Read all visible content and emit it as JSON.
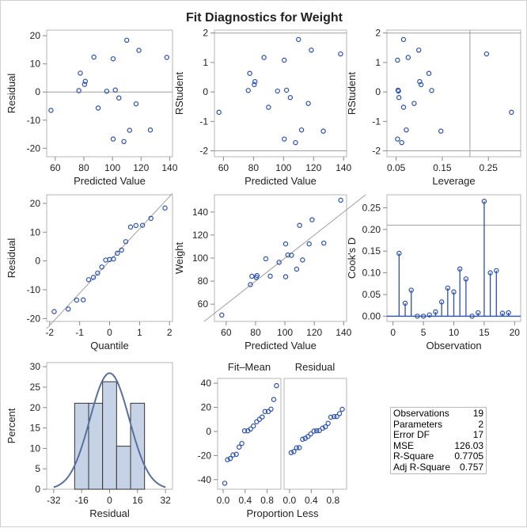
{
  "title": "Fit Diagnostics for Weight",
  "chart_data": [
    {
      "type": "scatter",
      "name": "residual-vs-predicted",
      "xlabel": "Predicted Value",
      "ylabel": "Residual",
      "xticks": [
        60,
        80,
        100,
        120,
        140
      ],
      "yticks": [
        -20,
        -10,
        0,
        10,
        20
      ],
      "xlim": [
        54,
        142
      ],
      "ylim": [
        -23,
        22
      ],
      "hline": [
        0
      ],
      "x": [
        57,
        76.5,
        77.5,
        80.5,
        81,
        87,
        90,
        96,
        100.5,
        100.5,
        102,
        104.5,
        108,
        110,
        112,
        116.5,
        118.5,
        126.5,
        138
      ],
      "y": [
        -6.5,
        0.5,
        6.7,
        2.7,
        3.8,
        12.4,
        -5.7,
        0.3,
        11.8,
        -16.7,
        0.7,
        -2.1,
        -17.6,
        18.4,
        -13.6,
        -4.2,
        14.8,
        -13.5,
        12.3
      ]
    },
    {
      "type": "scatter",
      "name": "rstudent-vs-predicted",
      "xlabel": "Predicted Value",
      "ylabel": "RStudent",
      "xticks": [
        60,
        80,
        100,
        120,
        140
      ],
      "yticks": [
        -2,
        -1,
        0,
        1,
        2
      ],
      "xlim": [
        54,
        142
      ],
      "ylim": [
        -2.2,
        2.1
      ],
      "hline": [
        -2,
        2
      ],
      "x": [
        57,
        76.5,
        77.5,
        80.5,
        81,
        87,
        90,
        96,
        100.5,
        100.5,
        102,
        104.5,
        108,
        110,
        112,
        116.5,
        118.5,
        126.5,
        138
      ],
      "y": [
        -0.69,
        0.05,
        0.63,
        0.25,
        0.35,
        1.17,
        -0.52,
        0.03,
        1.08,
        -1.6,
        0.06,
        -0.19,
        -1.72,
        1.78,
        -1.29,
        -0.39,
        1.42,
        -1.33,
        1.29
      ]
    },
    {
      "type": "scatter",
      "name": "rstudent-vs-leverage",
      "xlabel": "Leverage",
      "ylabel": "RStudent",
      "xticks": [
        0.05,
        0.15,
        0.25
      ],
      "yticks": [
        -2,
        -1,
        0,
        1,
        2
      ],
      "xlim": [
        0.03,
        0.32
      ],
      "ylim": [
        -2.2,
        2.1
      ],
      "hline": [
        -2,
        2
      ],
      "vline": [
        0.21
      ],
      "x": [
        0.3,
        0.127,
        0.121,
        0.104,
        0.101,
        0.076,
        0.066,
        0.055,
        0.053,
        0.053,
        0.054,
        0.056,
        0.062,
        0.066,
        0.072,
        0.089,
        0.099,
        0.147,
        0.246
      ],
      "y": [
        -0.69,
        0.05,
        0.63,
        0.25,
        0.35,
        1.17,
        -0.52,
        0.03,
        1.08,
        -1.6,
        0.06,
        -0.19,
        -1.72,
        1.78,
        -1.29,
        -0.39,
        1.42,
        -1.33,
        1.29
      ]
    },
    {
      "type": "scatter",
      "name": "residual-qq",
      "xlabel": "Quantile",
      "ylabel": "Residual",
      "xticks": [
        -2,
        -1,
        0,
        1,
        2
      ],
      "yticks": [
        -20,
        -10,
        0,
        10,
        20
      ],
      "xlim": [
        -2.1,
        2.1
      ],
      "ylim": [
        -21,
        23
      ],
      "diagonal": [
        [
          -2.1,
          -23.5
        ],
        [
          2.1,
          23.5
        ]
      ],
      "x": [
        -1.85,
        -1.38,
        -1.1,
        -0.88,
        -0.7,
        -0.54,
        -0.4,
        -0.26,
        -0.13,
        0,
        0.13,
        0.26,
        0.4,
        0.54,
        0.7,
        0.88,
        1.1,
        1.38,
        1.85
      ],
      "y": [
        -17.6,
        -16.7,
        -13.6,
        -13.5,
        -6.5,
        -5.7,
        -4.2,
        -2.1,
        0.3,
        0.5,
        0.7,
        2.7,
        3.8,
        6.7,
        11.8,
        12.3,
        12.4,
        14.8,
        18.4
      ]
    },
    {
      "type": "scatter",
      "name": "weight-vs-predicted",
      "xlabel": "Predicted Value",
      "ylabel": "Weight",
      "xticks": [
        60,
        80,
        100,
        120,
        140
      ],
      "yticks": [
        60,
        80,
        100,
        120,
        140
      ],
      "xlim": [
        52,
        142
      ],
      "ylim": [
        45,
        155
      ],
      "diagonal": [
        [
          45,
          45
        ],
        [
          155,
          155
        ]
      ],
      "x": [
        57,
        76.5,
        77.5,
        80.5,
        81,
        87,
        90,
        96,
        100.5,
        100.5,
        102,
        104.5,
        108,
        110,
        112,
        116.5,
        118.5,
        126.5,
        138
      ],
      "y": [
        50.5,
        77,
        84.2,
        83.2,
        84.8,
        99.4,
        84.3,
        96.3,
        112.3,
        83.8,
        102.7,
        102.4,
        90.4,
        128.4,
        98.4,
        112.3,
        133.3,
        113,
        150.3
      ]
    },
    {
      "type": "stem",
      "name": "cooks-d",
      "xlabel": "Observation",
      "ylabel": "Cook's D",
      "xticks": [
        0,
        5,
        10,
        15,
        20
      ],
      "yticks": [
        "0.00",
        "0.05",
        "0.10",
        "0.15",
        "0.20",
        "0.25"
      ],
      "xlim": [
        -1,
        21
      ],
      "ylim": [
        -0.012,
        0.28
      ],
      "hline": [
        0.21
      ],
      "x": [
        1,
        2,
        3,
        4,
        5,
        6,
        7,
        8,
        9,
        10,
        11,
        12,
        13,
        14,
        15,
        16,
        17,
        18,
        19
      ],
      "y": [
        0.145,
        0.03,
        0.06,
        0,
        0,
        0.003,
        0.01,
        0.033,
        0.065,
        0.056,
        0.109,
        0.086,
        0,
        0.008,
        0.265,
        0.1,
        0.105,
        0.007,
        0.008
      ]
    },
    {
      "type": "histogram",
      "name": "residual-histogram",
      "xlabel": "Residual",
      "ylabel": "Percent",
      "xticks": [
        -32,
        -16,
        0,
        16,
        32
      ],
      "yticks": [
        0,
        5,
        10,
        15,
        20,
        25,
        30
      ],
      "xlim": [
        -36,
        36
      ],
      "ylim": [
        0,
        31
      ],
      "bins": [
        [
          -20,
          -12,
          21.05
        ],
        [
          -12,
          -4,
          21.05
        ],
        [
          -4,
          4,
          26.32
        ],
        [
          4,
          12,
          10.53
        ],
        [
          12,
          20,
          21.05
        ]
      ],
      "normal_sd": 11.23,
      "bar_color": "#c6d3e6",
      "curve_color": "#5a6f9e"
    },
    {
      "type": "scatter",
      "name": "fit-mean-residual-spread",
      "xlabel": "Proportion Less",
      "panels": [
        "Fit–Mean",
        "Residual"
      ],
      "xticks": [
        "0.0",
        "0.4",
        "0.8"
      ],
      "yticks": [
        -40,
        -20,
        0,
        20,
        40
      ],
      "xlim": [
        -0.1,
        1.05
      ],
      "ylim": [
        -48,
        44
      ],
      "x": [
        0.03,
        0.08,
        0.13,
        0.18,
        0.24,
        0.29,
        0.34,
        0.39,
        0.45,
        0.5,
        0.55,
        0.61,
        0.66,
        0.71,
        0.76,
        0.82,
        0.87,
        0.92,
        0.97
      ],
      "fit_mean": [
        -43,
        -23.5,
        -22.5,
        -19.5,
        -19,
        -13,
        -10,
        0.5,
        0.5,
        2,
        4.5,
        8,
        10,
        12,
        16.5,
        16.5,
        18.5,
        26.5,
        38
      ],
      "residual": [
        -17.6,
        -16.7,
        -13.6,
        -13.5,
        -6.5,
        -5.7,
        -4.2,
        -2.1,
        0.3,
        0.5,
        0.7,
        2.7,
        3.8,
        6.7,
        11.8,
        12.3,
        12.4,
        14.8,
        18.4
      ]
    }
  ],
  "stats": [
    [
      "Observations",
      "19"
    ],
    [
      "Parameters",
      "2"
    ],
    [
      "Error DF",
      "17"
    ],
    [
      "MSE",
      "126.03"
    ],
    [
      "R-Square",
      "0.7705"
    ],
    [
      "Adj R-Square",
      "0.757"
    ]
  ],
  "colors": {
    "marker": "#2a4fb5",
    "ref": "#a0a0a0",
    "frame": "#b5b5b5"
  }
}
